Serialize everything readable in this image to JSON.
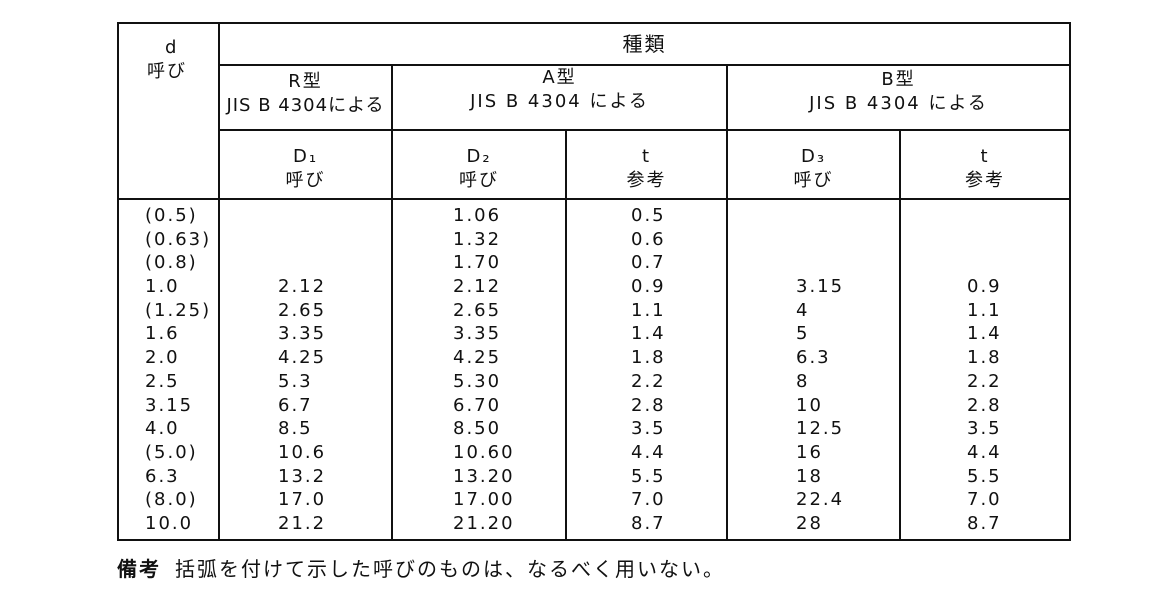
{
  "header": {
    "d": "d",
    "d_sub": "呼び",
    "kind": "種類",
    "r_type": "R型",
    "r_std": "JIS B 4304による",
    "a_type": "A型",
    "a_std": "JIS B 4304 による",
    "b_type": "B型",
    "b_std": "JIS B 4304 による",
    "columns": [
      {
        "symbol": "D₁",
        "sub": "呼び"
      },
      {
        "symbol": "D₂",
        "sub": "呼び"
      },
      {
        "symbol": "t",
        "sub": "参考"
      },
      {
        "symbol": "D₃",
        "sub": "呼び"
      },
      {
        "symbol": "t",
        "sub": "参考"
      }
    ]
  },
  "table": {
    "rows": [
      [
        "(0.5)",
        null,
        "1.06",
        "0.5",
        null,
        null
      ],
      [
        "(0.63)",
        null,
        "1.32",
        "0.6",
        null,
        null
      ],
      [
        "(0.8)",
        null,
        "1.70",
        "0.7",
        null,
        null
      ],
      [
        "1.0",
        "2.12",
        "2.12",
        "0.9",
        "3.15",
        "0.9"
      ],
      [
        "(1.25)",
        "2.65",
        "2.65",
        "1.1",
        "4",
        "1.1"
      ],
      [
        "1.6",
        "3.35",
        "3.35",
        "1.4",
        "5",
        "1.4"
      ],
      [
        "2.0",
        "4.25",
        "4.25",
        "1.8",
        "6.3",
        "1.8"
      ],
      [
        "2.5",
        "5.3",
        "5.30",
        "2.2",
        "8",
        "2.2"
      ],
      [
        "3.15",
        "6.7",
        "6.70",
        "2.8",
        "10",
        "2.8"
      ],
      [
        "4.0",
        "8.5",
        "8.50",
        "3.5",
        "12.5",
        "3.5"
      ],
      [
        "(5.0)",
        "10.6",
        "10.60",
        "4.4",
        "16",
        "4.4"
      ],
      [
        "6.3",
        "13.2",
        "13.20",
        "5.5",
        "18",
        "5.5"
      ],
      [
        "(8.0)",
        "17.0",
        "17.00",
        "7.0",
        "22.4",
        "7.0"
      ],
      [
        "10.0",
        "21.2",
        "21.20",
        "8.7",
        "28",
        "8.7"
      ]
    ]
  },
  "note": {
    "label": "備考",
    "text": "括弧を付けて示した呼びのものは、なるべく用いない。"
  }
}
